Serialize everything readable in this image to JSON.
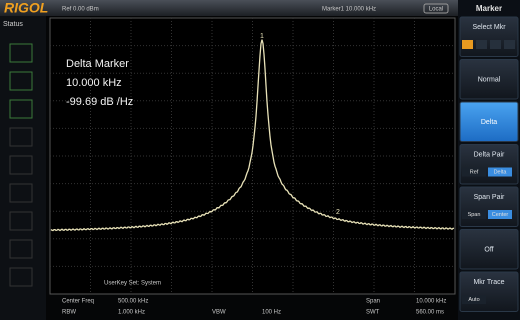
{
  "header": {
    "logo": "RIGOL",
    "status": "Status",
    "ref": "Ref 0.00 dBm",
    "marker": "Marker1 10.000 kHz",
    "local": "Local"
  },
  "marker_box": {
    "title": "Delta Marker",
    "frequency": "10.000 kHz",
    "value": "-99.69 dB /Hz"
  },
  "trace_markers": [
    "1",
    "2"
  ],
  "user_key": "UserKey Set:  System",
  "footer": {
    "center_label": "Center Freq",
    "center_value": "500.00 kHz",
    "rbw_label": "RBW",
    "rbw_value": "1.000 kHz",
    "vbw_label": "VBW",
    "vbw_value": "100 Hz",
    "span_label": "Span",
    "span_value": "10.000 kHz",
    "swt_label": "SWT",
    "swt_value": "560.00 ms"
  },
  "menu": {
    "title": "Marker",
    "items": [
      {
        "label": "Select Mkr"
      },
      {
        "label": "Normal"
      },
      {
        "label": "Delta"
      },
      {
        "label": "Delta Pair",
        "options": [
          "Ref",
          "Delta"
        ]
      },
      {
        "label": "Span Pair",
        "options": [
          "Span",
          "Center"
        ]
      },
      {
        "label": "Off"
      },
      {
        "label": "Mkr Trace",
        "options": [
          "Auto"
        ]
      }
    ]
  }
}
